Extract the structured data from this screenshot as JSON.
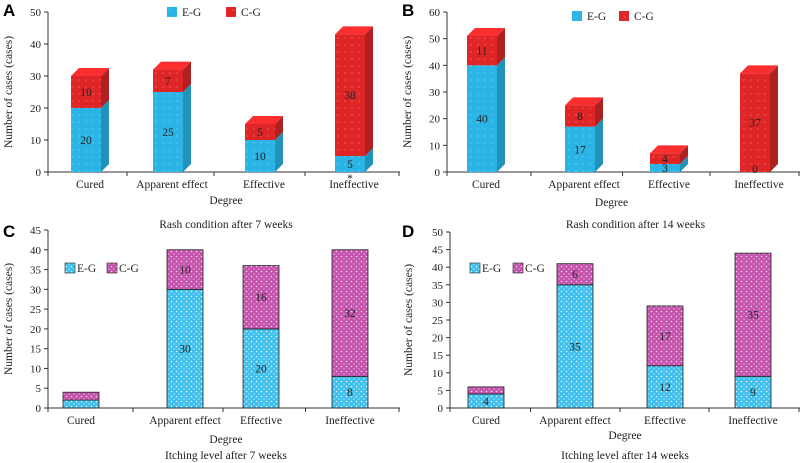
{
  "colors": {
    "eg_blue": "#29b6e8",
    "cg_red": "#e02a2a",
    "cg_magenta": "#c04aa8",
    "eg_light": "#49c9ef"
  },
  "chart_data": [
    {
      "panel": "A",
      "type": "bar",
      "stacked": true,
      "style": "3d",
      "categories": [
        "Cured",
        "Apparent effect",
        "Effective",
        "Ineffective"
      ],
      "series": [
        {
          "name": "E-G",
          "values": [
            20,
            25,
            10,
            5
          ]
        },
        {
          "name": "C-G",
          "values": [
            10,
            7,
            5,
            38
          ]
        }
      ],
      "ylabel": "Number of cases (cases)",
      "xlabel": "Degree",
      "caption": "Rash condition after 7 weeks",
      "ylim": [
        0,
        50
      ],
      "yticks": [
        0,
        10,
        20,
        30,
        40,
        50
      ],
      "annotations": [
        {
          "category": "Ineffective",
          "text": "*"
        }
      ]
    },
    {
      "panel": "B",
      "type": "bar",
      "stacked": true,
      "style": "3d",
      "categories": [
        "Cured",
        "Apparent effect",
        "Effective",
        "Ineffective"
      ],
      "series": [
        {
          "name": "E-G",
          "values": [
            40,
            17,
            3,
            0
          ]
        },
        {
          "name": "C-G",
          "values": [
            11,
            8,
            4,
            37
          ]
        }
      ],
      "ylabel": "Number of cases (cases)",
      "xlabel": "Degree",
      "caption": "Rash condition after 14 weeks",
      "ylim": [
        0,
        60
      ],
      "yticks": [
        0,
        10,
        20,
        30,
        40,
        50,
        60
      ]
    },
    {
      "panel": "C",
      "type": "bar",
      "stacked": true,
      "style": "flat-dotted",
      "categories": [
        "Cured",
        "Apparent effect",
        "Effective",
        "Ineffective"
      ],
      "series": [
        {
          "name": "E-G",
          "values": [
            2,
            30,
            20,
            8
          ]
        },
        {
          "name": "C-G",
          "values": [
            2,
            10,
            16,
            32
          ]
        }
      ],
      "value_labels_shown": [
        [
          false,
          true,
          true,
          true
        ],
        [
          false,
          true,
          true,
          true
        ]
      ],
      "ylabel": "Number of cases (cases)",
      "xlabel": "Degree",
      "caption": "Itching level after 7 weeks",
      "ylim": [
        0,
        45
      ],
      "yticks": [
        0,
        5,
        10,
        15,
        20,
        25,
        30,
        35,
        40,
        45
      ]
    },
    {
      "panel": "D",
      "type": "bar",
      "stacked": true,
      "style": "flat-dotted",
      "categories": [
        "Cured",
        "Apparent effect",
        "Effective",
        "Ineffective"
      ],
      "series": [
        {
          "name": "E-G",
          "values": [
            4,
            35,
            12,
            9
          ]
        },
        {
          "name": "C-G",
          "values": [
            2,
            6,
            17,
            35
          ]
        }
      ],
      "value_labels_shown": [
        [
          true,
          true,
          true,
          true
        ],
        [
          false,
          true,
          true,
          true
        ]
      ],
      "ylabel": "Number of cases (cases)",
      "xlabel": "Degree",
      "caption": "Itching level after 14 weeks",
      "ylim": [
        0,
        50
      ],
      "yticks": [
        0,
        5,
        10,
        15,
        20,
        25,
        30,
        35,
        40,
        45,
        50
      ]
    }
  ]
}
